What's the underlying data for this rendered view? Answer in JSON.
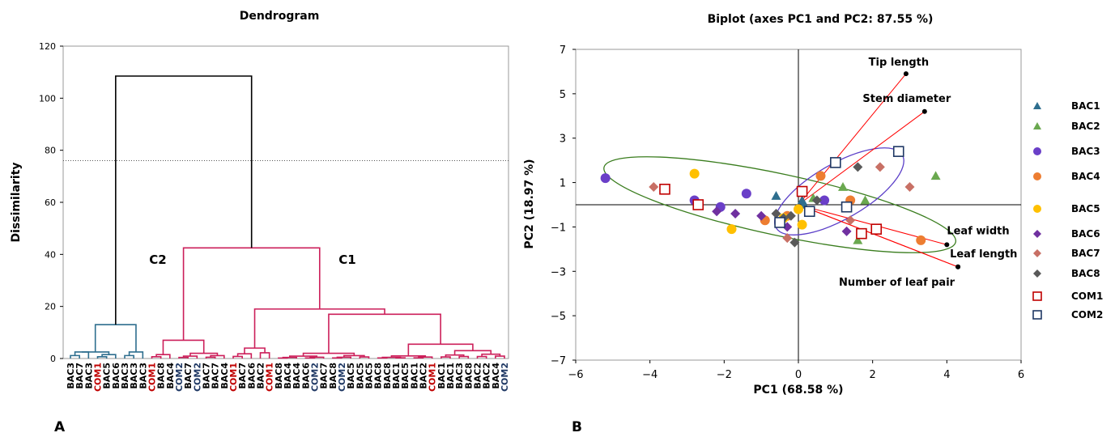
{
  "panels": {
    "a": "A",
    "b": "B"
  },
  "chart_data": [
    {
      "type": "dendrogram",
      "title": "Dendrogram",
      "ylabel": "Dissimilarity",
      "xlabel": "",
      "ylim": [
        0,
        120
      ],
      "yticks": [
        0,
        20,
        40,
        60,
        80,
        100,
        120
      ],
      "truncation_line": 76,
      "cluster_labels": [
        "C2",
        "C1"
      ],
      "colors": {
        "C2": "#2e6e8e",
        "C1": "#cc1f5a",
        "top": "#000000",
        "leaf_bac": "#000000",
        "leaf_com1": "#c00000",
        "leaf_com2": "#1f3864"
      },
      "leaves": [
        "BAC3",
        "BAC7",
        "BAC3",
        "COM1",
        "BAC5",
        "BAC6",
        "BAC3",
        "BAC3",
        "BAC3",
        "COM1",
        "BAC8",
        "BAC4",
        "COM2",
        "BAC7",
        "COM2",
        "BAC7",
        "BAC7",
        "BAC4",
        "COM1",
        "BAC7",
        "BAC6",
        "BAC2",
        "COM1",
        "BAC8",
        "BAC4",
        "BAC4",
        "BAC6",
        "COM2",
        "BAC7",
        "BAC8",
        "COM2",
        "BAC5",
        "BAC5",
        "BAC5",
        "BAC8",
        "BAC8",
        "BAC1",
        "BAC5",
        "BAC1",
        "BAC2",
        "COM1",
        "BAC1",
        "BAC1",
        "BAC3",
        "BAC8",
        "BAC2",
        "BAC2",
        "BAC4",
        "COM2"
      ],
      "merge_heights": {
        "root": 108.5,
        "C2": 13,
        "C1": 42.5,
        "C1_left": 7,
        "C1_right": 19,
        "C1_right_b": 17,
        "C1_right_b_right": 5.5
      }
    },
    {
      "type": "scatter",
      "title": "Biplot (axes PC1 and PC2: 87.55 %)",
      "xlabel": "PC1 (68.58 %)",
      "ylabel": "PC2 (18.97 %)",
      "xlim": [
        -6,
        6
      ],
      "ylim": [
        -7,
        7
      ],
      "xticks": [
        "−6",
        "−4",
        "−2",
        "0",
        "2",
        "4",
        "6"
      ],
      "yticks": [
        "−7",
        "−5",
        "−3",
        "−1",
        "1",
        "3",
        "5",
        "7"
      ],
      "series": [
        {
          "name": "BAC1",
          "marker": "triangle",
          "color": "#2e6e8e",
          "points": [
            [
              -0.6,
              0.4
            ],
            [
              0.1,
              0.2
            ],
            [
              0.15,
              0.0
            ]
          ]
        },
        {
          "name": "BAC2",
          "marker": "triangle",
          "color": "#6aa84f",
          "points": [
            [
              0.4,
              0.3
            ],
            [
              1.2,
              0.8
            ],
            [
              1.8,
              0.2
            ],
            [
              1.6,
              -1.6
            ],
            [
              3.7,
              1.3
            ]
          ]
        },
        {
          "name": "BAC3",
          "marker": "circle",
          "color": "#6a3fc8",
          "points": [
            [
              -5.2,
              1.2
            ],
            [
              -2.8,
              0.2
            ],
            [
              -2.1,
              -0.1
            ],
            [
              -1.4,
              0.5
            ],
            [
              0.7,
              0.2
            ]
          ]
        },
        {
          "name": "BAC4",
          "marker": "circle",
          "color": "#ed7d31",
          "points": [
            [
              -0.9,
              -0.7
            ],
            [
              -0.3,
              -0.5
            ],
            [
              0.6,
              1.3
            ],
            [
              1.4,
              0.2
            ],
            [
              3.3,
              -1.6
            ]
          ]
        },
        {
          "name": "BAC5",
          "marker": "circle",
          "color": "#ffc000",
          "points": [
            [
              -2.8,
              1.4
            ],
            [
              -1.8,
              -1.1
            ],
            [
              -0.4,
              -0.6
            ],
            [
              0.0,
              -0.2
            ],
            [
              0.1,
              -0.9
            ]
          ]
        },
        {
          "name": "BAC6",
          "marker": "diamond",
          "color": "#7030a0",
          "points": [
            [
              -2.2,
              -0.3
            ],
            [
              -1.7,
              -0.4
            ],
            [
              -1.0,
              -0.5
            ],
            [
              -0.3,
              -1.0
            ],
            [
              1.3,
              -1.2
            ]
          ]
        },
        {
          "name": "BAC7",
          "marker": "diamond",
          "color": "#c87065",
          "points": [
            [
              -3.9,
              0.8
            ],
            [
              -0.3,
              -1.5
            ],
            [
              1.4,
              -0.7
            ],
            [
              2.2,
              1.7
            ],
            [
              3.0,
              0.8
            ]
          ]
        },
        {
          "name": "BAC8",
          "marker": "diamond",
          "color": "#595959",
          "points": [
            [
              -0.4,
              -0.6
            ],
            [
              -0.2,
              -0.5
            ],
            [
              -0.6,
              -0.4
            ],
            [
              0.5,
              0.2
            ],
            [
              1.6,
              1.7
            ],
            [
              -0.1,
              -1.7
            ]
          ]
        },
        {
          "name": "COM1",
          "marker": "square",
          "color": "#c00000",
          "points": [
            [
              -3.6,
              0.7
            ],
            [
              -2.7,
              0.0
            ],
            [
              0.1,
              0.6
            ],
            [
              1.7,
              -1.3
            ],
            [
              2.1,
              -1.1
            ]
          ]
        },
        {
          "name": "COM2",
          "marker": "square",
          "color": "#1f3864",
          "points": [
            [
              1.0,
              1.9
            ],
            [
              1.3,
              -0.1
            ],
            [
              2.7,
              2.4
            ],
            [
              0.3,
              -0.3
            ],
            [
              -0.5,
              -0.8
            ]
          ]
        }
      ],
      "variables": [
        {
          "name": "Tip length",
          "x": 2.9,
          "y": 5.9
        },
        {
          "name": "Stem diameter",
          "x": 3.4,
          "y": 4.2
        },
        {
          "name": "Leaf width",
          "x": 4.0,
          "y": -1.8
        },
        {
          "name": "Leaf length",
          "x": 4.3,
          "y": -2.8
        },
        {
          "name": "Number of leaf pair",
          "x": 4.3,
          "y": -2.8
        }
      ],
      "vector_color": "#ff0000",
      "ellipse_colors": [
        "#3a7d1e",
        "#5b3fc8"
      ]
    }
  ]
}
